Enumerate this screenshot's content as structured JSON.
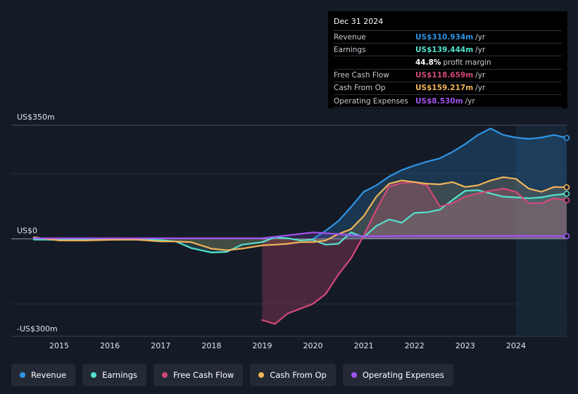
{
  "colors": {
    "revenue": "#2f95e6",
    "earnings": "#54e1cf",
    "fcf": "#d2487a",
    "cfo": "#f0b45a",
    "opex": "#a153f0",
    "background": "#151b26"
  },
  "tooltip": {
    "date": "Dec 31 2024",
    "rows": [
      {
        "label": "Revenue",
        "value": "US$310.934m",
        "unit": "/yr",
        "color": "#2f95e6"
      },
      {
        "label": "Earnings",
        "value": "US$139.444m",
        "unit": "/yr",
        "color": "#54e1cf"
      },
      {
        "label": "",
        "value": "44.8%",
        "unit": "profit margin",
        "color": "#ffffff"
      },
      {
        "label": "Free Cash Flow",
        "value": "US$118.659m",
        "unit": "/yr",
        "color": "#d2487a"
      },
      {
        "label": "Cash From Op",
        "value": "US$159.217m",
        "unit": "/yr",
        "color": "#f0b45a"
      },
      {
        "label": "Operating Expenses",
        "value": "US$8.530m",
        "unit": "/yr",
        "color": "#a153f0"
      }
    ]
  },
  "legend": [
    {
      "label": "Revenue",
      "color": "#2f95e6"
    },
    {
      "label": "Earnings",
      "color": "#54e1cf"
    },
    {
      "label": "Free Cash Flow",
      "color": "#d2487a"
    },
    {
      "label": "Cash From Op",
      "color": "#f0b45a"
    },
    {
      "label": "Operating Expenses",
      "color": "#a153f0"
    }
  ],
  "chart_data": {
    "type": "area",
    "title": "",
    "xlabel": "",
    "ylabel": "",
    "ylim": [
      -300,
      350
    ],
    "xlim": [
      2014.5,
      2025.0
    ],
    "y_tick_labels": [
      {
        "value": 350,
        "label": "US$350m"
      },
      {
        "value": 0,
        "label": "US$0"
      },
      {
        "value": -300,
        "label": "-US$300m"
      }
    ],
    "x_ticks": [
      2015,
      2016,
      2017,
      2018,
      2019,
      2020,
      2021,
      2022,
      2023,
      2024
    ],
    "x_tick_labels": [
      "2015",
      "2016",
      "2017",
      "2018",
      "2019",
      "2020",
      "2021",
      "2022",
      "2023",
      "2024"
    ],
    "forecast_start": 2024.0,
    "series": [
      {
        "name": "Revenue",
        "color": "#2f95e6",
        "x": [
          2020.0,
          2020.25,
          2020.5,
          2020.75,
          2021.0,
          2021.25,
          2021.5,
          2021.75,
          2022.0,
          2022.25,
          2022.5,
          2022.75,
          2023.0,
          2023.25,
          2023.5,
          2023.75,
          2024.0,
          2024.25,
          2024.5,
          2024.75,
          2025.0
        ],
        "y": [
          0,
          25,
          55,
          98,
          145,
          165,
          192,
          212,
          226,
          238,
          248,
          268,
          292,
          320,
          340,
          320,
          312,
          308,
          312,
          320,
          311
        ]
      },
      {
        "name": "Earnings",
        "color": "#54e1cf",
        "x": [
          2014.5,
          2015.0,
          2015.5,
          2016.0,
          2016.5,
          2017.0,
          2017.3,
          2017.6,
          2018.0,
          2018.3,
          2018.6,
          2019.0,
          2019.25,
          2019.5,
          2019.75,
          2020.0,
          2020.25,
          2020.5,
          2020.75,
          2021.0,
          2021.25,
          2021.5,
          2021.75,
          2022.0,
          2022.25,
          2022.5,
          2022.75,
          2023.0,
          2023.25,
          2023.5,
          2023.75,
          2024.0,
          2024.25,
          2024.5,
          2024.75,
          2025.0
        ],
        "y": [
          -2,
          -3,
          -3,
          -2,
          -2,
          -4,
          -8,
          -28,
          -42,
          -40,
          -18,
          -10,
          5,
          2,
          -5,
          -3,
          -18,
          -15,
          20,
          5,
          40,
          60,
          50,
          80,
          82,
          90,
          120,
          148,
          150,
          140,
          130,
          128,
          125,
          128,
          135,
          139
        ]
      },
      {
        "name": "Free Cash Flow",
        "color": "#d2487a",
        "x": [
          2019.0,
          2019.25,
          2019.5,
          2019.75,
          2020.0,
          2020.25,
          2020.5,
          2020.75,
          2021.0,
          2021.25,
          2021.5,
          2021.75,
          2022.0,
          2022.25,
          2022.5,
          2022.75,
          2023.0,
          2023.25,
          2023.5,
          2023.75,
          2024.0,
          2024.25,
          2024.5,
          2024.75,
          2025.0
        ],
        "y": [
          -250,
          -262,
          -230,
          -215,
          -200,
          -170,
          -110,
          -60,
          10,
          90,
          162,
          172,
          175,
          165,
          100,
          110,
          130,
          140,
          148,
          155,
          145,
          110,
          110,
          125,
          119
        ]
      },
      {
        "name": "Cash From Op",
        "color": "#f0b45a",
        "x": [
          2014.5,
          2015.0,
          2015.5,
          2016.0,
          2016.5,
          2017.0,
          2017.3,
          2017.6,
          2018.0,
          2018.3,
          2018.6,
          2019.0,
          2019.25,
          2019.5,
          2019.75,
          2020.0,
          2020.25,
          2020.5,
          2020.75,
          2021.0,
          2021.25,
          2021.5,
          2021.75,
          2022.0,
          2022.25,
          2022.5,
          2022.75,
          2023.0,
          2023.25,
          2023.5,
          2023.75,
          2024.0,
          2024.25,
          2024.5,
          2024.75,
          2025.0
        ],
        "y": [
          5,
          -5,
          -5,
          -3,
          -2,
          -8,
          -8,
          -10,
          -30,
          -35,
          -30,
          -20,
          -18,
          -15,
          -10,
          -10,
          -5,
          15,
          30,
          70,
          130,
          170,
          180,
          175,
          170,
          168,
          175,
          160,
          165,
          180,
          190,
          185,
          155,
          145,
          160,
          159
        ]
      },
      {
        "name": "Operating Expenses",
        "color": "#a153f0",
        "x": [
          2014.5,
          2015.0,
          2016.0,
          2017.0,
          2018.0,
          2019.0,
          2020.0,
          2020.5,
          2021.0,
          2022.0,
          2023.0,
          2024.0,
          2025.0
        ],
        "y": [
          2,
          2,
          2,
          2,
          2,
          2,
          20,
          15,
          8,
          9,
          9,
          9,
          8.5
        ]
      }
    ]
  }
}
